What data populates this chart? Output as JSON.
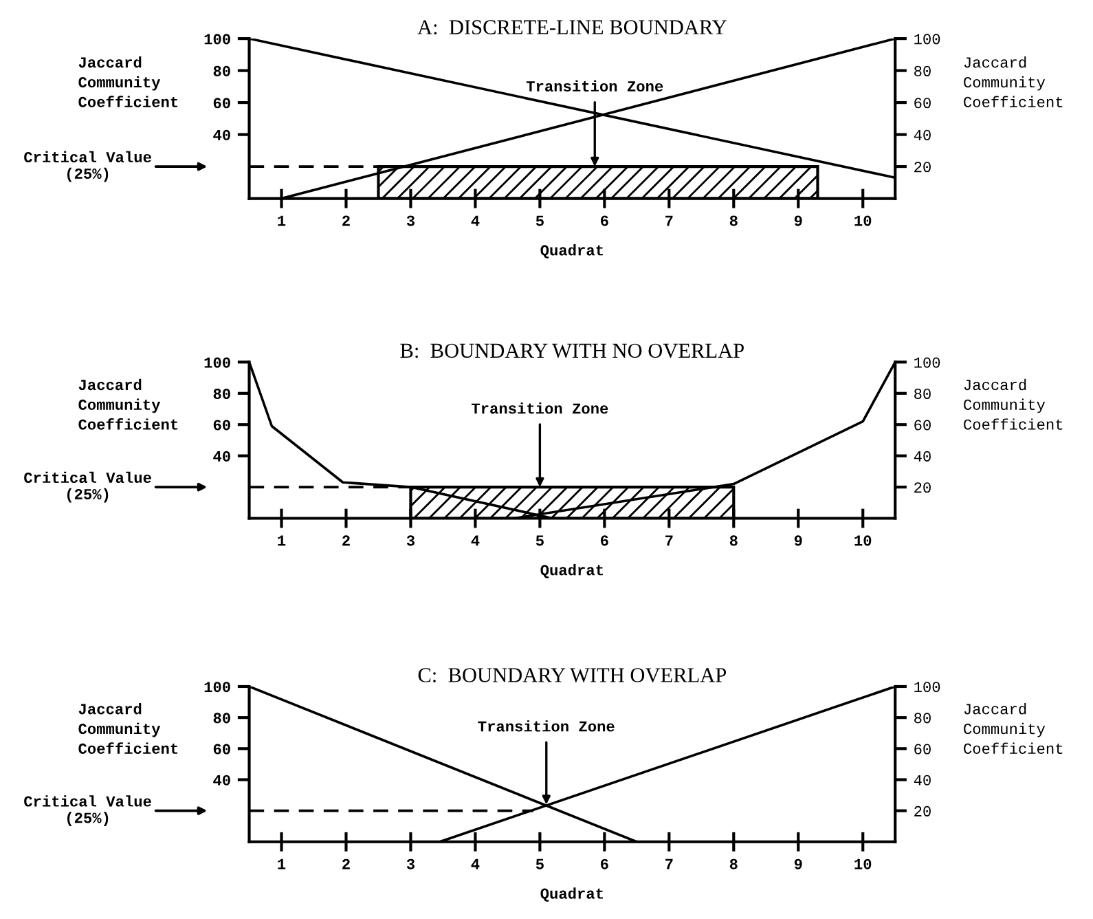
{
  "chart_data": [
    {
      "type": "line",
      "title": "A:  DISCRETE-LINE BOUNDARY",
      "xlabel": "Quadrat",
      "ylabel": "Jaccard\nCommunity\nCoefficient",
      "y2label": "Jaccard\nCommunity\nCoefficient",
      "series": [
        {
          "color": "#000000",
          "x": [
            0.5,
            10.5
          ],
          "values": [
            100,
            13
          ]
        },
        {
          "color": "#000000",
          "x": [
            1.0,
            10.5
          ],
          "values": [
            0,
            100
          ]
        }
      ],
      "xlim": [
        0.5,
        10.5
      ],
      "xticks": [
        1,
        2,
        3,
        4,
        5,
        6,
        7,
        8,
        9,
        10
      ],
      "ylim": [
        0,
        100
      ],
      "yticks": [
        40,
        60,
        80,
        100
      ],
      "y2lim": [
        0,
        100
      ],
      "y2ticks": [
        20,
        40,
        60,
        80,
        100
      ],
      "ref_lines": [
        {
          "axis": "y",
          "value": 20,
          "label": "Critical Value\n(25%)",
          "line_style": "dashed",
          "color": "#000000"
        }
      ],
      "bands": [
        {
          "axis": "x",
          "from": 2.5,
          "to": 9.3,
          "color": "#000000"
        }
      ],
      "annotations": [
        {
          "text": "Transition Zone",
          "x": 5.85,
          "y": 20
        }
      ]
    },
    {
      "type": "line",
      "title": "B:  BOUNDARY WITH NO OVERLAP",
      "xlabel": "Quadrat",
      "ylabel": "Jaccard\nCommunity\nCoefficient",
      "y2label": "Jaccard\nCommunity\nCoefficient",
      "series": [
        {
          "color": "#000000",
          "x": [
            0.5,
            0.85,
            1.95,
            3.0,
            5.2
          ],
          "values": [
            100,
            59,
            23,
            20,
            0
          ]
        },
        {
          "color": "#000000",
          "x": [
            4.6,
            8.0,
            10.0,
            10.5
          ],
          "values": [
            0,
            22,
            62,
            100
          ]
        }
      ],
      "xlim": [
        0.5,
        10.5
      ],
      "xticks": [
        1,
        2,
        3,
        4,
        5,
        6,
        7,
        8,
        9,
        10
      ],
      "ylim": [
        0,
        100
      ],
      "yticks": [
        40,
        60,
        80,
        100
      ],
      "y2lim": [
        0,
        100
      ],
      "y2ticks": [
        20,
        40,
        60,
        80,
        100
      ],
      "ref_lines": [
        {
          "axis": "y",
          "value": 20,
          "label": "Critical Value\n(25%)",
          "line_style": "dashed",
          "color": "#000000"
        }
      ],
      "bands": [
        {
          "axis": "x",
          "from": 3.0,
          "to": 8.0,
          "color": "#000000"
        }
      ],
      "annotations": [
        {
          "text": "Transition Zone",
          "x": 5.0,
          "y": 20
        }
      ]
    },
    {
      "type": "line",
      "title": "C:  BOUNDARY WITH OVERLAP",
      "xlabel": "Quadrat",
      "ylabel": "Jaccard\nCommunity\nCoefficient",
      "y2label": "Jaccard\nCommunity\nCoefficient",
      "series": [
        {
          "color": "#000000",
          "x": [
            0.5,
            6.5
          ],
          "values": [
            100,
            0
          ]
        },
        {
          "color": "#000000",
          "x": [
            3.45,
            10.5
          ],
          "values": [
            0,
            100
          ]
        }
      ],
      "xlim": [
        0.5,
        10.5
      ],
      "xticks": [
        1,
        2,
        3,
        4,
        5,
        6,
        7,
        8,
        9,
        10
      ],
      "ylim": [
        0,
        100
      ],
      "yticks": [
        40,
        60,
        80,
        100
      ],
      "y2lim": [
        0,
        100
      ],
      "y2ticks": [
        20,
        40,
        60,
        80,
        100
      ],
      "ref_lines": [
        {
          "axis": "y",
          "value": 20,
          "label": "Critical Value\n(25%)",
          "line_style": "dashed",
          "color": "#000000"
        }
      ],
      "annotations": [
        {
          "text": "Transition Zone",
          "x": 5.1,
          "y": 24
        }
      ]
    }
  ]
}
